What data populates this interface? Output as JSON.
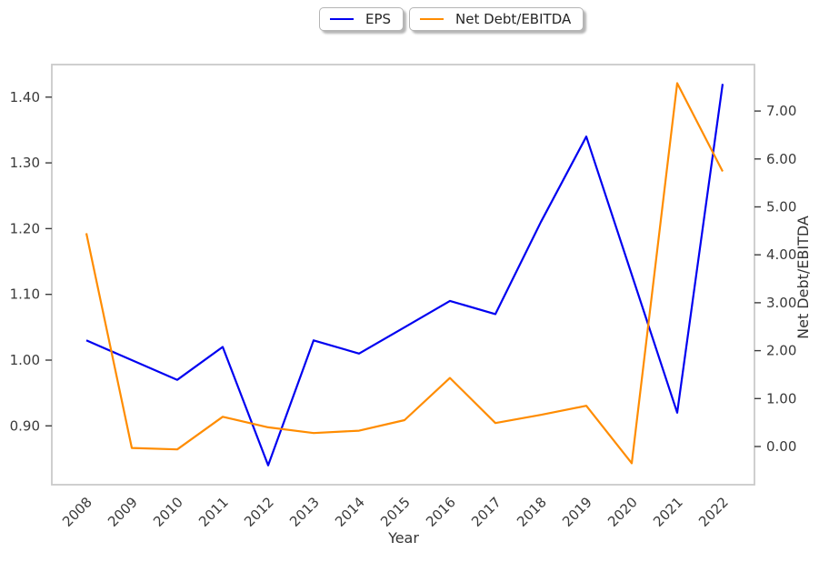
{
  "figure": {
    "xlabel": "Year",
    "right_ylabel": "Net Debt/EBITDA",
    "legend": {
      "items": [
        {
          "label": "EPS",
          "color": "#0000f0"
        },
        {
          "label": "Net Debt/EBITDA",
          "color": "#ff8c00"
        }
      ],
      "position": "top-center"
    }
  },
  "chart_data": {
    "type": "line",
    "x": [
      2008,
      2009,
      2010,
      2011,
      2012,
      2013,
      2014,
      2015,
      2016,
      2017,
      2018,
      2019,
      2020,
      2021,
      2022
    ],
    "series": [
      {
        "name": "EPS",
        "axis": "left",
        "color": "#0000f0",
        "values": [
          1.03,
          1.0,
          0.97,
          1.02,
          0.84,
          1.03,
          1.01,
          1.05,
          1.09,
          1.07,
          1.21,
          1.34,
          1.13,
          0.92,
          1.42
        ]
      },
      {
        "name": "Net Debt/EBITDA",
        "axis": "right",
        "color": "#ff8c00",
        "values": [
          4.45,
          -0.03,
          -0.06,
          0.62,
          0.4,
          0.28,
          0.33,
          0.55,
          1.43,
          0.49,
          0.66,
          0.85,
          -0.35,
          7.58,
          5.74
        ]
      }
    ],
    "title": "",
    "xlabel": "Year",
    "left_ylabel": "",
    "right_ylabel": "Net Debt/EBITDA",
    "left_tick_labels": [
      "0.90",
      "1.00",
      "1.10",
      "1.20",
      "1.30",
      "1.40"
    ],
    "left_tick_values": [
      0.9,
      1.0,
      1.1,
      1.2,
      1.3,
      1.4
    ],
    "right_tick_labels": [
      "0.00",
      "1.00",
      "2.00",
      "3.00",
      "4.00",
      "5.00",
      "6.00",
      "7.00"
    ],
    "right_tick_values": [
      0.0,
      1.0,
      2.0,
      3.0,
      4.0,
      5.0,
      6.0,
      7.0
    ],
    "left_ylim": [
      0.81,
      1.45
    ],
    "right_ylim": [
      -0.8,
      7.97
    ],
    "xtick_rotation_deg": 45,
    "grid": false,
    "legend_position": "top-center"
  },
  "colors": {
    "spine": "#cacaca",
    "tickmark": "#3d3d3d",
    "tick_text": "#3a3a3a",
    "axis_text": "#333333",
    "background": "#ffffff"
  }
}
